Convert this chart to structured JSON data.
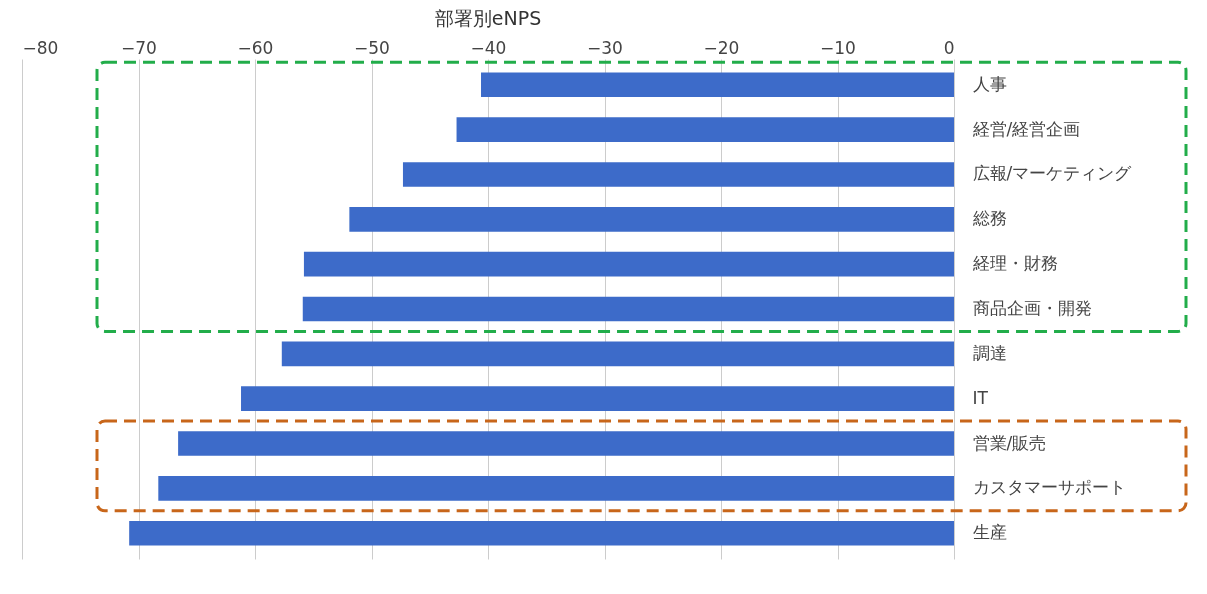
{
  "chart_data": {
    "type": "bar",
    "orientation": "horizontal",
    "title": "部署別eNPS",
    "categories": [
      "人事",
      "経営/経営企画",
      "広報/マーケティング",
      "総務",
      "経理・財務",
      "商品企画・開発",
      "調達",
      "IT",
      "営業/販売",
      "カスタマーサポート",
      "生産"
    ],
    "values": [
      -40.6,
      -42.7,
      -47.3,
      -51.9,
      -55.8,
      -55.9,
      -57.7,
      -61.2,
      -66.6,
      -68.3,
      -70.8
    ],
    "color": "#3d6bc9",
    "xlim": [
      -80,
      0
    ],
    "xticks": [
      -80,
      -70,
      -60,
      -50,
      -40,
      -30,
      -20,
      -10,
      0
    ],
    "grid": "x"
  }
}
